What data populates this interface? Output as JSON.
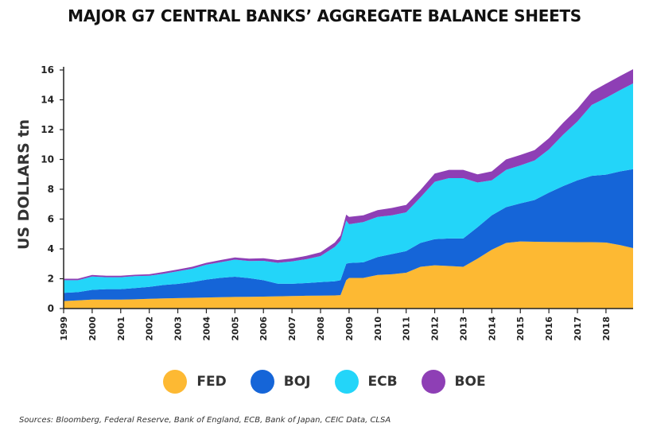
{
  "chart_data": {
    "type": "area",
    "stacked": true,
    "title": "MAJOR G7 CENTRAL BANKS’ AGGREGATE BALANCE SHEETS",
    "ylabel": "US DOLLARS tn",
    "xlabel": "",
    "ylim": [
      0,
      16
    ],
    "yticks": [
      "0",
      "2",
      "4",
      "6",
      "8",
      "10",
      "12",
      "14",
      "16"
    ],
    "xticks": [
      "1999",
      "2000",
      "2001",
      "2002",
      "2003",
      "2004",
      "2005",
      "2006",
      "2007",
      "2008",
      "2009",
      "2010",
      "2011",
      "2012",
      "2013",
      "2014",
      "2015",
      "2016",
      "2017",
      "2018"
    ],
    "grid": false,
    "legend_position": "bottom",
    "x": [
      1999.0,
      1999.5,
      2000.0,
      2000.5,
      2001.0,
      2001.5,
      2002.0,
      2002.5,
      2003.0,
      2003.5,
      2004.0,
      2004.5,
      2005.0,
      2005.5,
      2006.0,
      2006.5,
      2007.0,
      2007.5,
      2008.0,
      2008.5,
      2008.7,
      2008.9,
      2009.0,
      2009.5,
      2010.0,
      2010.5,
      2011.0,
      2011.5,
      2012.0,
      2012.5,
      2013.0,
      2013.5,
      2014.0,
      2014.5,
      2015.0,
      2015.5,
      2016.0,
      2016.5,
      2017.0,
      2017.5,
      2018.0,
      2018.5,
      2018.95
    ],
    "series": [
      {
        "name": "FED",
        "color": "#FDB933",
        "values": [
          0.5,
          0.55,
          0.6,
          0.6,
          0.6,
          0.62,
          0.65,
          0.68,
          0.7,
          0.72,
          0.74,
          0.76,
          0.78,
          0.79,
          0.8,
          0.82,
          0.84,
          0.86,
          0.87,
          0.88,
          0.9,
          1.9,
          2.05,
          2.05,
          2.25,
          2.3,
          2.4,
          2.8,
          2.9,
          2.85,
          2.8,
          3.35,
          3.95,
          4.4,
          4.5,
          4.48,
          4.47,
          4.46,
          4.45,
          4.45,
          4.43,
          4.25,
          4.05
        ]
      },
      {
        "name": "BOJ",
        "color": "#1565D8",
        "values": [
          0.55,
          0.55,
          0.65,
          0.7,
          0.7,
          0.75,
          0.8,
          0.9,
          0.95,
          1.05,
          1.2,
          1.3,
          1.35,
          1.25,
          1.1,
          0.85,
          0.82,
          0.85,
          0.9,
          0.95,
          1.0,
          1.1,
          1.0,
          1.05,
          1.2,
          1.35,
          1.45,
          1.6,
          1.75,
          1.85,
          1.9,
          2.1,
          2.3,
          2.4,
          2.55,
          2.8,
          3.3,
          3.75,
          4.15,
          4.45,
          4.55,
          4.95,
          5.3
        ]
      },
      {
        "name": "ECB",
        "color": "#23D5F9",
        "values": [
          0.85,
          0.8,
          0.9,
          0.8,
          0.8,
          0.8,
          0.75,
          0.75,
          0.85,
          0.9,
          1.0,
          1.05,
          1.15,
          1.15,
          1.3,
          1.4,
          1.5,
          1.6,
          1.75,
          2.3,
          2.65,
          2.9,
          2.6,
          2.7,
          2.7,
          2.6,
          2.6,
          3.05,
          3.85,
          4.05,
          4.05,
          3.0,
          2.35,
          2.5,
          2.55,
          2.65,
          2.9,
          3.45,
          3.95,
          4.75,
          5.15,
          5.45,
          5.75
        ]
      },
      {
        "name": "BOE",
        "color": "#8E3FB5",
        "values": [
          0.1,
          0.1,
          0.1,
          0.1,
          0.1,
          0.1,
          0.1,
          0.12,
          0.12,
          0.13,
          0.13,
          0.14,
          0.15,
          0.16,
          0.17,
          0.18,
          0.2,
          0.22,
          0.25,
          0.3,
          0.35,
          0.4,
          0.5,
          0.45,
          0.45,
          0.5,
          0.5,
          0.5,
          0.55,
          0.55,
          0.55,
          0.55,
          0.6,
          0.7,
          0.7,
          0.7,
          0.75,
          0.8,
          0.85,
          0.9,
          0.95,
          0.95,
          0.95
        ]
      }
    ],
    "source": "Sources: Bloomberg, Federal Reserve, Bank of England, ECB, Bank of Japan, CEIC Data, CLSA"
  }
}
